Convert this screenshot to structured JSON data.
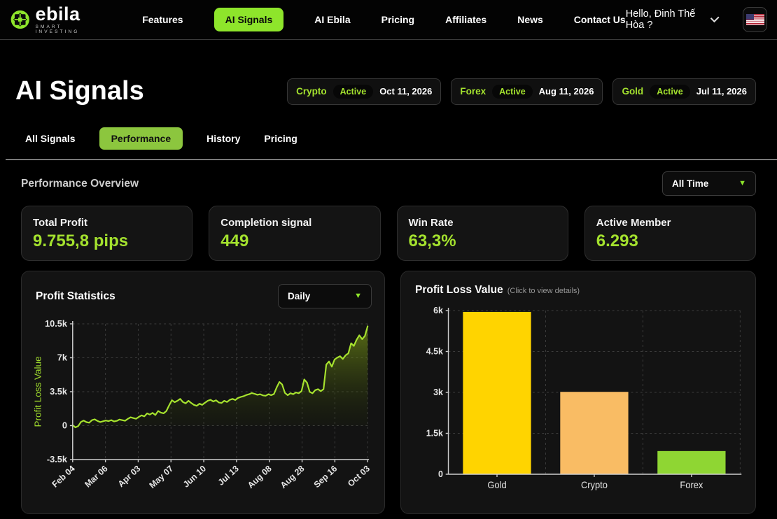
{
  "header": {
    "logo": {
      "brand": "ebila",
      "tagline": "SMART INVESTING"
    },
    "nav": {
      "items": [
        {
          "label": "Features"
        },
        {
          "label": "AI Signals",
          "active": true
        },
        {
          "label": "AI Ebila"
        },
        {
          "label": "Pricing"
        },
        {
          "label": "Affiliates"
        },
        {
          "label": "News"
        },
        {
          "label": "Contact Us"
        }
      ]
    },
    "greeting": "Hello, Đinh Thế Hòa ?",
    "language_flag": "us-flag"
  },
  "hero": {
    "title": "AI Signals",
    "badges": [
      {
        "market": "Crypto",
        "status": "Active",
        "date": "Oct 11, 2026"
      },
      {
        "market": "Forex",
        "status": "Active",
        "date": "Aug 11, 2026"
      },
      {
        "market": "Gold",
        "status": "Active",
        "date": "Jul 11, 2026"
      }
    ]
  },
  "tabs": {
    "items": [
      {
        "label": "All Signals"
      },
      {
        "label": "Performance",
        "active": true
      },
      {
        "label": "History"
      },
      {
        "label": "Pricing"
      }
    ]
  },
  "overview": {
    "title": "Performance Overview",
    "time_filter": "All Time"
  },
  "stats": [
    {
      "label": "Total Profit",
      "value": "9.755,8 pips"
    },
    {
      "label": "Completion signal",
      "value": "449"
    },
    {
      "label": "Win Rate",
      "value": "63,3%"
    },
    {
      "label": "Active Member",
      "value": "6.293"
    }
  ],
  "panels": {
    "profit_statistics": {
      "title": "Profit Statistics",
      "period_filter": "Daily"
    },
    "profit_loss": {
      "title": "Profit Loss Value",
      "hint": "(Click to view details)"
    }
  },
  "colors": {
    "accent": "#8ee52b",
    "accent_muted": "#8cc63e",
    "value_green": "#a4e22e",
    "line_green": "#a6e22e",
    "grid": "#3c3c3c",
    "axis": "#cfcfcf",
    "tick_text": "#e6e6e6",
    "bar_gold": "#ffd400",
    "bar_crypto": "#f9bc64",
    "bar_forex": "#8fd633"
  },
  "chart_data": [
    {
      "type": "area",
      "title": "Profit Statistics",
      "ylabel": "Profit Loss Value",
      "ylim": [
        -3500,
        10500
      ],
      "grid": true,
      "legend": "none",
      "yticks": [
        {
          "v": 10500,
          "label": "10.5k"
        },
        {
          "v": 7000,
          "label": "7k"
        },
        {
          "v": 3500,
          "label": "3.5k"
        },
        {
          "v": 0,
          "label": "0"
        },
        {
          "v": -3500,
          "label": "-3.5k"
        }
      ],
      "xticklabels": [
        "Feb 04",
        "Mar 06",
        "Apr 03",
        "May 07",
        "Jun 10",
        "Jul 13",
        "Aug 08",
        "Aug 28",
        "Sep 16",
        "Oct 03"
      ],
      "values": [
        50,
        -180,
        -50,
        380,
        520,
        360,
        300,
        560,
        650,
        480,
        370,
        450,
        530,
        460,
        570,
        430,
        490,
        630,
        560,
        500,
        700,
        860,
        780,
        710,
        900,
        1060,
        950,
        1260,
        1140,
        1310,
        1100,
        1510,
        1340,
        1270,
        1510,
        2100,
        2620,
        2420,
        2560,
        2760,
        2440,
        2300,
        2560,
        2340,
        2140,
        2040,
        2260,
        2140,
        2360,
        2560,
        2660,
        2490,
        2610,
        2390,
        2340,
        2560,
        2440,
        2660,
        2760,
        2640,
        2860,
        2960,
        3040,
        3160,
        3240,
        3360,
        3280,
        3180,
        3240,
        3120,
        3080,
        3240,
        3140,
        3260,
        3940,
        4500,
        4240,
        3380,
        3140,
        3340,
        3240,
        3420,
        3340,
        3560,
        4760,
        4440,
        3480,
        3340,
        3660,
        3760,
        3560,
        3760,
        6300,
        6620,
        6080,
        6820,
        7020,
        7160,
        6880,
        7260,
        7460,
        8500,
        8220,
        8860,
        9320,
        8920,
        9260,
        10250
      ]
    },
    {
      "type": "bar",
      "title": "Profit Loss Value",
      "categories": [
        "Gold",
        "Crypto",
        "Forex"
      ],
      "values": [
        5950,
        3020,
        850
      ],
      "colors": [
        "#ffd400",
        "#f9bc64",
        "#8fd633"
      ],
      "ylim": [
        0,
        6000
      ],
      "grid": true,
      "yticks": [
        {
          "v": 6000,
          "label": "6k"
        },
        {
          "v": 4500,
          "label": "4.5k"
        },
        {
          "v": 3000,
          "label": "3k"
        },
        {
          "v": 1500,
          "label": "1.5k"
        },
        {
          "v": 0,
          "label": "0"
        }
      ]
    }
  ]
}
